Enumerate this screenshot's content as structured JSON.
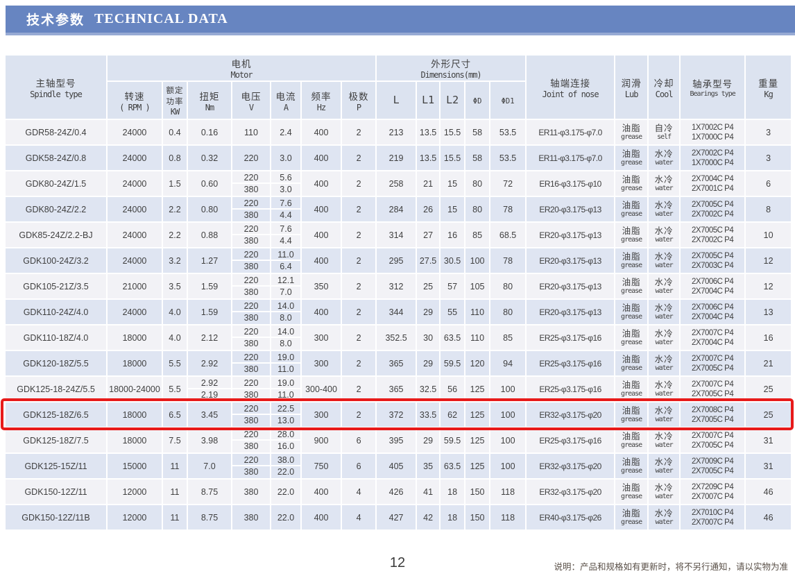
{
  "banner": {
    "title_zh": "技术参数",
    "title_en": "TECHNICAL DATA"
  },
  "header": {
    "spindle_zh": "主轴型号",
    "spindle_en": "Spindle type",
    "motor_zh": "电机",
    "motor_en": "Motor",
    "dims_zh": "外形尺寸",
    "dims_en": "Dimensions(mm)",
    "rpm_zh": "转速",
    "rpm_en": "( RPM )",
    "power_zh1": "额定",
    "power_zh2": "功率",
    "power_unit": "KW",
    "torque_zh": "扭矩",
    "torque_unit": "Nm",
    "volt_zh": "电压",
    "volt_unit": "V",
    "amp_zh": "电流",
    "amp_unit": "A",
    "freq_zh": "频率",
    "freq_unit": "Hz",
    "pole_zh": "极数",
    "pole_unit": "P",
    "L": "L",
    "L1": "L1",
    "L2": "L2",
    "dD": "ΦD",
    "dD1": "ΦD1",
    "joint_zh": "轴端连接",
    "joint_en": "Joint of nose",
    "lub_zh": "润滑",
    "lub_en": "Lub",
    "cool_zh": "冷却",
    "cool_en": "Cool",
    "bearing_zh": "轴承型号",
    "bearing_en": "Bearings type",
    "weight_zh": "重量",
    "weight_unit": "Kg"
  },
  "rows": [
    {
      "model": "GDR58-24Z/0.4",
      "rpm": "24000",
      "kw": "0.4",
      "nm": [
        "0.16"
      ],
      "v": [
        "110"
      ],
      "a": [
        "2.4"
      ],
      "hz": "400",
      "p": "2",
      "L": "213",
      "L1": "13.5",
      "L2": "15.5",
      "dD": "58",
      "dD1": "53.5",
      "joint": "ER11-φ3.175-φ7.0",
      "lub_zh": "油脂",
      "lub_en": "grease",
      "cool_zh": "自冷",
      "cool_en": "self",
      "bearings": [
        "1X7002C P4",
        "1X7000C P4"
      ],
      "kg": "3",
      "highlight": false
    },
    {
      "model": "GDK58-24Z/0.8",
      "rpm": "24000",
      "kw": "0.8",
      "nm": [
        "0.32"
      ],
      "v": [
        "220"
      ],
      "a": [
        "3.0"
      ],
      "hz": "400",
      "p": "2",
      "L": "219",
      "L1": "13.5",
      "L2": "15.5",
      "dD": "58",
      "dD1": "53.5",
      "joint": "ER11-φ3.175-φ7.0",
      "lub_zh": "油脂",
      "lub_en": "grease",
      "cool_zh": "水冷",
      "cool_en": "water",
      "bearings": [
        "2X7002C P4",
        "1X7000C P4"
      ],
      "kg": "3",
      "highlight": false
    },
    {
      "model": "GDK80-24Z/1.5",
      "rpm": "24000",
      "kw": "1.5",
      "nm": [
        "0.60"
      ],
      "v": [
        "220",
        "380"
      ],
      "a": [
        "5.6",
        "3.0"
      ],
      "hz": "400",
      "p": "2",
      "L": "258",
      "L1": "21",
      "L2": "15",
      "dD": "80",
      "dD1": "72",
      "joint": "ER16-φ3.175-φ10",
      "lub_zh": "油脂",
      "lub_en": "grease",
      "cool_zh": "水冷",
      "cool_en": "water",
      "bearings": [
        "2X7004C P4",
        "2X7001C P4"
      ],
      "kg": "6",
      "highlight": false
    },
    {
      "model": "GDK80-24Z/2.2",
      "rpm": "24000",
      "kw": "2.2",
      "nm": [
        "0.80"
      ],
      "v": [
        "220",
        "380"
      ],
      "a": [
        "7.6",
        "4.4"
      ],
      "hz": "400",
      "p": "2",
      "L": "284",
      "L1": "26",
      "L2": "15",
      "dD": "80",
      "dD1": "78",
      "joint": "ER20-φ3.175-φ13",
      "lub_zh": "油脂",
      "lub_en": "grease",
      "cool_zh": "水冷",
      "cool_en": "water",
      "bearings": [
        "2X7005C P4",
        "2X7002C P4"
      ],
      "kg": "8",
      "highlight": false
    },
    {
      "model": "GDK85-24Z/2.2-BJ",
      "rpm": "24000",
      "kw": "2.2",
      "nm": [
        "0.88"
      ],
      "v": [
        "220",
        "380"
      ],
      "a": [
        "7.6",
        "4.4"
      ],
      "hz": "400",
      "p": "2",
      "L": "314",
      "L1": "27",
      "L2": "16",
      "dD": "85",
      "dD1": "68.5",
      "joint": "ER20-φ3.175-φ13",
      "lub_zh": "油脂",
      "lub_en": "grease",
      "cool_zh": "水冷",
      "cool_en": "water",
      "bearings": [
        "2X7005C P4",
        "2X7002C P4"
      ],
      "kg": "10",
      "highlight": false
    },
    {
      "model": "GDK100-24Z/3.2",
      "rpm": "24000",
      "kw": "3.2",
      "nm": [
        "1.27"
      ],
      "v": [
        "220",
        "380"
      ],
      "a": [
        "11.0",
        "6.4"
      ],
      "hz": "400",
      "p": "2",
      "L": "295",
      "L1": "27.5",
      "L2": "30.5",
      "dD": "100",
      "dD1": "78",
      "joint": "ER20-φ3.175-φ13",
      "lub_zh": "油脂",
      "lub_en": "grease",
      "cool_zh": "水冷",
      "cool_en": "water",
      "bearings": [
        "2X7005C P4",
        "2X7003C P4"
      ],
      "kg": "12",
      "highlight": false
    },
    {
      "model": "GDK105-21Z/3.5",
      "rpm": "21000",
      "kw": "3.5",
      "nm": [
        "1.59"
      ],
      "v": [
        "220",
        "380"
      ],
      "a": [
        "12.1",
        "7.0"
      ],
      "hz": "350",
      "p": "2",
      "L": "312",
      "L1": "25",
      "L2": "57",
      "dD": "105",
      "dD1": "80",
      "joint": "ER20-φ3.175-φ13",
      "lub_zh": "油脂",
      "lub_en": "grease",
      "cool_zh": "水冷",
      "cool_en": "water",
      "bearings": [
        "2X7006C P4",
        "2X7004C P4"
      ],
      "kg": "12",
      "highlight": false
    },
    {
      "model": "GDK110-24Z/4.0",
      "rpm": "24000",
      "kw": "4.0",
      "nm": [
        "1.59"
      ],
      "v": [
        "220",
        "380"
      ],
      "a": [
        "14.0",
        "8.0"
      ],
      "hz": "400",
      "p": "2",
      "L": "344",
      "L1": "29",
      "L2": "55",
      "dD": "110",
      "dD1": "80",
      "joint": "ER20-φ3.175-φ13",
      "lub_zh": "油脂",
      "lub_en": "grease",
      "cool_zh": "水冷",
      "cool_en": "water",
      "bearings": [
        "2X7006C P4",
        "2X7004C P4"
      ],
      "kg": "13",
      "highlight": false
    },
    {
      "model": "GDK110-18Z/4.0",
      "rpm": "18000",
      "kw": "4.0",
      "nm": [
        "2.12"
      ],
      "v": [
        "220",
        "380"
      ],
      "a": [
        "14.0",
        "8.0"
      ],
      "hz": "300",
      "p": "2",
      "L": "352.5",
      "L1": "30",
      "L2": "63.5",
      "dD": "110",
      "dD1": "85",
      "joint": "ER25-φ3.175-φ16",
      "lub_zh": "油脂",
      "lub_en": "grease",
      "cool_zh": "水冷",
      "cool_en": "water",
      "bearings": [
        "2X7007C P4",
        "2X7004C P4"
      ],
      "kg": "16",
      "highlight": false
    },
    {
      "model": "GDK120-18Z/5.5",
      "rpm": "18000",
      "kw": "5.5",
      "nm": [
        "2.92"
      ],
      "v": [
        "220",
        "380"
      ],
      "a": [
        "19.0",
        "11.0"
      ],
      "hz": "300",
      "p": "2",
      "L": "365",
      "L1": "29",
      "L2": "59.5",
      "dD": "120",
      "dD1": "94",
      "joint": "ER25-φ3.175-φ16",
      "lub_zh": "油脂",
      "lub_en": "grease",
      "cool_zh": "水冷",
      "cool_en": "water",
      "bearings": [
        "2X7007C P4",
        "2X7005C P4"
      ],
      "kg": "21",
      "highlight": false
    },
    {
      "model": "GDK125-18-24Z/5.5",
      "rpm": "18000-24000",
      "kw": "5.5",
      "nm": [
        "2.92",
        "2.19"
      ],
      "v": [
        "220",
        "380"
      ],
      "a": [
        "19.0",
        "11.0"
      ],
      "hz": "300-400",
      "p": "2",
      "L": "365",
      "L1": "32.5",
      "L2": "56",
      "dD": "125",
      "dD1": "100",
      "joint": "ER25-φ3.175-φ16",
      "lub_zh": "油脂",
      "lub_en": "grease",
      "cool_zh": "水冷",
      "cool_en": "water",
      "bearings": [
        "2X7007C P4",
        "2X7005C P4"
      ],
      "kg": "25",
      "highlight": false
    },
    {
      "model": "GDK125-18Z/6.5",
      "rpm": "18000",
      "kw": "6.5",
      "nm": [
        "3.45"
      ],
      "v": [
        "220",
        "380"
      ],
      "a": [
        "22.5",
        "13.0"
      ],
      "hz": "300",
      "p": "2",
      "L": "372",
      "L1": "33.5",
      "L2": "62",
      "dD": "125",
      "dD1": "100",
      "joint": "ER32-φ3.175-φ20",
      "lub_zh": "油脂",
      "lub_en": "grease",
      "cool_zh": "水冷",
      "cool_en": "water",
      "bearings": [
        "2X7008C P4",
        "2X7005C P4"
      ],
      "kg": "25",
      "highlight": true
    },
    {
      "model": "GDK125-18Z/7.5",
      "rpm": "18000",
      "kw": "7.5",
      "nm": [
        "3.98"
      ],
      "v": [
        "220",
        "380"
      ],
      "a": [
        "28.0",
        "16.0"
      ],
      "hz": "900",
      "p": "6",
      "L": "395",
      "L1": "29",
      "L2": "59.5",
      "dD": "125",
      "dD1": "100",
      "joint": "ER25-φ3.175-φ16",
      "lub_zh": "油脂",
      "lub_en": "grease",
      "cool_zh": "水冷",
      "cool_en": "water",
      "bearings": [
        "2X7007C P4",
        "2X7005C P4"
      ],
      "kg": "31",
      "highlight": false
    },
    {
      "model": "GDK125-15Z/11",
      "rpm": "15000",
      "kw": "11",
      "nm": [
        "7.0"
      ],
      "v": [
        "220",
        "380"
      ],
      "a": [
        "38.0",
        "22.0"
      ],
      "hz": "750",
      "p": "6",
      "L": "405",
      "L1": "35",
      "L2": "63.5",
      "dD": "125",
      "dD1": "100",
      "joint": "ER32-φ3.175-φ20",
      "lub_zh": "油脂",
      "lub_en": "grease",
      "cool_zh": "水冷",
      "cool_en": "water",
      "bearings": [
        "2X7009C P4",
        "2X7005C P4"
      ],
      "kg": "31",
      "highlight": false
    },
    {
      "model": "GDK150-12Z/11",
      "rpm": "12000",
      "kw": "11",
      "nm": [
        "8.75"
      ],
      "v": [
        "380"
      ],
      "a": [
        "22.0"
      ],
      "hz": "400",
      "p": "4",
      "L": "426",
      "L1": "41",
      "L2": "18",
      "dD": "150",
      "dD1": "118",
      "joint": "ER32-φ3.175-φ20",
      "lub_zh": "油脂",
      "lub_en": "grease",
      "cool_zh": "水冷",
      "cool_en": "water",
      "bearings": [
        "2X7209C P4",
        "2X7007C P4"
      ],
      "kg": "46",
      "highlight": false
    },
    {
      "model": "GDK150-12Z/11B",
      "rpm": "12000",
      "kw": "11",
      "nm": [
        "8.75"
      ],
      "v": [
        "380"
      ],
      "a": [
        "22.0"
      ],
      "hz": "400",
      "p": "4",
      "L": "427",
      "L1": "42",
      "L2": "18",
      "dD": "150",
      "dD1": "118",
      "joint": "ER40-φ3.175-φ26",
      "lub_zh": "油脂",
      "lub_en": "grease",
      "cool_zh": "水冷",
      "cool_en": "water",
      "bearings": [
        "2X7010C P4",
        "2X7007C P4"
      ],
      "kg": "46",
      "highlight": false
    }
  ],
  "footer": {
    "page": "12",
    "note": "说明：产品和规格如有更新时，将不另行通知，请以实物为准"
  }
}
